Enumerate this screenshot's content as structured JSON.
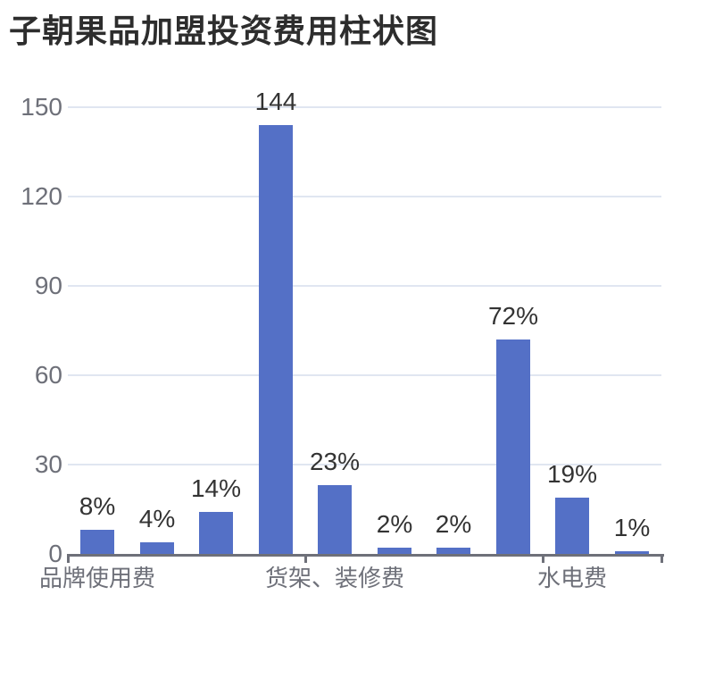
{
  "chart_data": {
    "type": "bar",
    "title": "子朝果品加盟投资费用柱状图",
    "bars": [
      {
        "label": "8%",
        "value": 8
      },
      {
        "label": "4%",
        "value": 4
      },
      {
        "label": "14%",
        "value": 14
      },
      {
        "label": "144",
        "value": 144
      },
      {
        "label": "23%",
        "value": 23
      },
      {
        "label": "2%",
        "value": 2
      },
      {
        "label": "2%",
        "value": 2
      },
      {
        "label": "72%",
        "value": 72
      },
      {
        "label": "19%",
        "value": 19
      },
      {
        "label": "1%",
        "value": 1
      }
    ],
    "num_bars": 10,
    "x_tick_labels": [
      "品牌使用费",
      "货架、装修费",
      "水电费"
    ],
    "x_label_band_indices": [
      0,
      4,
      8
    ],
    "y_ticks": [
      0,
      30,
      60,
      90,
      120,
      150
    ],
    "ylim": [
      0,
      150
    ],
    "legend": "none",
    "grid": "horizontal",
    "colors": {
      "bar": "#5470C6",
      "grid_line": "#E0E6F1",
      "axis_line": "#6E7079",
      "axis_label": "#6E7079",
      "bar_label": "#333333",
      "title": "#2D2D2D",
      "background": "#FFFFFF"
    }
  }
}
